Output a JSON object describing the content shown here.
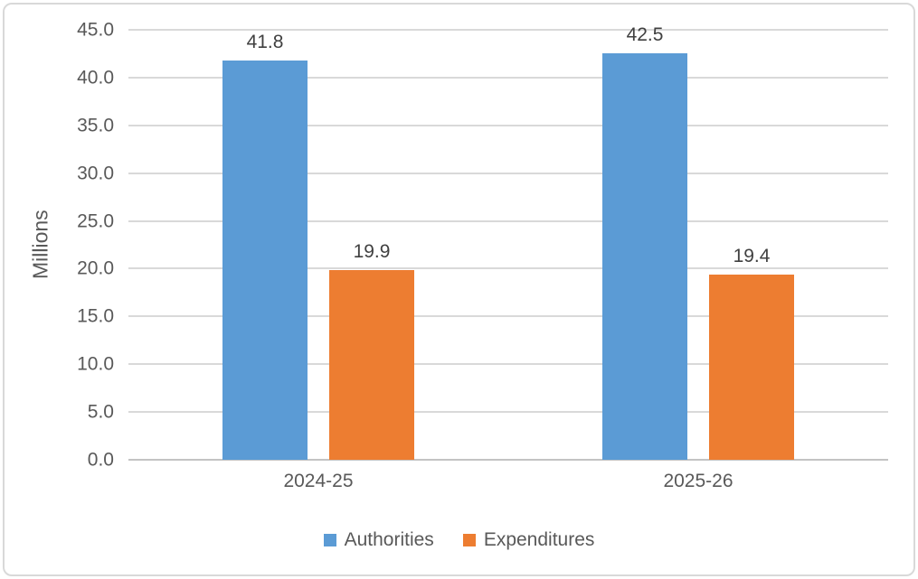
{
  "figure": {
    "background": "#ffffff",
    "border_color": "#d9d9d9"
  },
  "chart_data": {
    "type": "bar",
    "title": "",
    "xlabel": "",
    "ylabel": "Millions",
    "categories": [
      "2024-25",
      "2025-26"
    ],
    "series": [
      {
        "name": "Authorities",
        "color": "#5B9BD5",
        "values": [
          41.8,
          42.5
        ]
      },
      {
        "name": "Expenditures",
        "color": "#ED7D31",
        "values": [
          19.9,
          19.4
        ]
      }
    ],
    "ylim": [
      0,
      45
    ],
    "ytick_step": 5,
    "value_format_decimals": 1,
    "grid": "horizontal",
    "gridline_color": "#d9d9d9",
    "axis_line_color": "#c3c3c3",
    "tick_label_color": "#595959",
    "data_label_color": "#404040",
    "legend_position": "bottom",
    "data_labels": true
  }
}
